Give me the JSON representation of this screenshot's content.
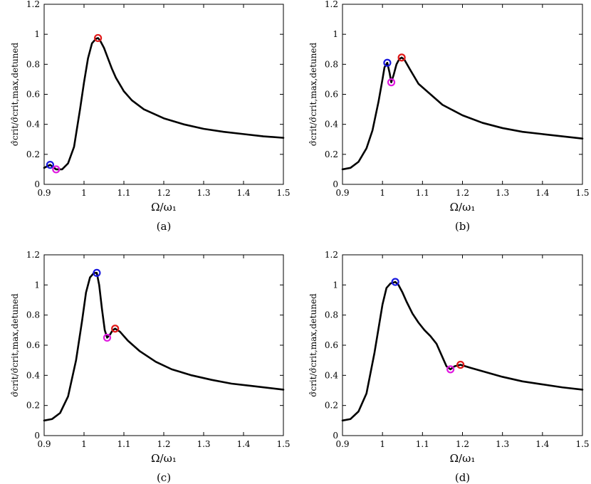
{
  "colors": {
    "curve": "#000000",
    "blue": "#1a1adf",
    "red": "#e01a1a",
    "magenta": "#e01ae0"
  },
  "chart_data": [
    {
      "type": "line",
      "caption": "(a)",
      "xlabel": "Ω/ω₁",
      "ylabel": "σ̂crit/σ̂crit,max,detuned",
      "xlim": [
        0.9,
        1.5
      ],
      "ylim": [
        0,
        1.2
      ],
      "xticks": [
        "0.9",
        "1",
        "1.1",
        "1.2",
        "1.3",
        "1.4",
        "1.5"
      ],
      "yticks": [
        "0",
        "0.2",
        "0.4",
        "0.6",
        "0.8",
        "1",
        "1.2"
      ],
      "grid": false,
      "series": [
        {
          "x": [
            0.9,
            0.915,
            0.93,
            0.945,
            0.96,
            0.975,
            0.99,
            1.0,
            1.01,
            1.02,
            1.03,
            1.035,
            1.04,
            1.05,
            1.06,
            1.07,
            1.08,
            1.1,
            1.12,
            1.15,
            1.2,
            1.25,
            1.3,
            1.35,
            1.4,
            1.45,
            1.5
          ],
          "y": [
            0.11,
            0.13,
            0.1,
            0.1,
            0.14,
            0.25,
            0.5,
            0.68,
            0.84,
            0.94,
            0.97,
            0.975,
            0.96,
            0.91,
            0.84,
            0.77,
            0.71,
            0.62,
            0.56,
            0.5,
            0.44,
            0.4,
            0.37,
            0.35,
            0.335,
            0.32,
            0.31
          ]
        }
      ],
      "markers": [
        {
          "color": "blue",
          "x": 0.915,
          "y": 0.13
        },
        {
          "color": "magenta",
          "x": 0.93,
          "y": 0.1
        },
        {
          "color": "red",
          "x": 1.035,
          "y": 0.975
        }
      ]
    },
    {
      "type": "line",
      "caption": "(b)",
      "xlabel": "Ω/ω₁",
      "ylabel": "σ̂crit/σ̂crit,max,detuned",
      "xlim": [
        0.9,
        1.5
      ],
      "ylim": [
        0,
        1.2
      ],
      "xticks": [
        "0.9",
        "1",
        "1.1",
        "1.2",
        "1.3",
        "1.4",
        "1.5"
      ],
      "yticks": [
        "0",
        "0.2",
        "0.4",
        "0.6",
        "0.8",
        "1",
        "1.2"
      ],
      "grid": false,
      "series": [
        {
          "x": [
            0.9,
            0.92,
            0.94,
            0.96,
            0.975,
            0.99,
            1.0,
            1.005,
            1.012,
            1.018,
            1.022,
            1.028,
            1.035,
            1.042,
            1.048,
            1.055,
            1.07,
            1.09,
            1.12,
            1.15,
            1.2,
            1.25,
            1.3,
            1.35,
            1.4,
            1.45,
            1.5
          ],
          "y": [
            0.1,
            0.11,
            0.15,
            0.24,
            0.36,
            0.55,
            0.7,
            0.78,
            0.81,
            0.74,
            0.68,
            0.73,
            0.8,
            0.835,
            0.845,
            0.83,
            0.76,
            0.67,
            0.6,
            0.53,
            0.46,
            0.41,
            0.375,
            0.35,
            0.335,
            0.32,
            0.305
          ]
        }
      ],
      "markers": [
        {
          "color": "blue",
          "x": 1.012,
          "y": 0.81
        },
        {
          "color": "magenta",
          "x": 1.022,
          "y": 0.68
        },
        {
          "color": "red",
          "x": 1.048,
          "y": 0.845
        }
      ]
    },
    {
      "type": "line",
      "caption": "(c)",
      "xlabel": "Ω/ω₁",
      "ylabel": "σ̂crit/σ̂crit,max,detuned",
      "xlim": [
        0.9,
        1.5
      ],
      "ylim": [
        0,
        1.2
      ],
      "xticks": [
        "0.9",
        "1",
        "1.1",
        "1.2",
        "1.3",
        "1.4",
        "1.5"
      ],
      "yticks": [
        "0",
        "0.2",
        "0.4",
        "0.6",
        "0.8",
        "1",
        "1.2"
      ],
      "grid": false,
      "series": [
        {
          "x": [
            0.9,
            0.92,
            0.94,
            0.96,
            0.98,
            0.995,
            1.005,
            1.015,
            1.025,
            1.032,
            1.038,
            1.045,
            1.052,
            1.058,
            1.065,
            1.072,
            1.078,
            1.09,
            1.11,
            1.14,
            1.18,
            1.22,
            1.27,
            1.32,
            1.37,
            1.42,
            1.5
          ],
          "y": [
            0.1,
            0.11,
            0.15,
            0.26,
            0.5,
            0.76,
            0.95,
            1.05,
            1.08,
            1.08,
            1.0,
            0.84,
            0.7,
            0.65,
            0.67,
            0.7,
            0.71,
            0.69,
            0.63,
            0.56,
            0.49,
            0.44,
            0.4,
            0.37,
            0.345,
            0.33,
            0.305
          ]
        }
      ],
      "markers": [
        {
          "color": "blue",
          "x": 1.032,
          "y": 1.08
        },
        {
          "color": "magenta",
          "x": 1.058,
          "y": 0.65
        },
        {
          "color": "red",
          "x": 1.078,
          "y": 0.71
        }
      ]
    },
    {
      "type": "line",
      "caption": "(d)",
      "xlabel": "Ω/ω₁",
      "ylabel": "σ̂crit/σ̂crit,max,detuned",
      "xlim": [
        0.9,
        1.5
      ],
      "ylim": [
        0,
        1.2
      ],
      "xticks": [
        "0.9",
        "1",
        "1.1",
        "1.2",
        "1.3",
        "1.4",
        "1.5"
      ],
      "yticks": [
        "0",
        "0.2",
        "0.4",
        "0.6",
        "0.8",
        "1",
        "1.2"
      ],
      "grid": false,
      "series": [
        {
          "x": [
            0.9,
            0.92,
            0.94,
            0.96,
            0.98,
            1.0,
            1.01,
            1.02,
            1.032,
            1.04,
            1.05,
            1.06,
            1.075,
            1.09,
            1.105,
            1.12,
            1.135,
            1.15,
            1.16,
            1.17,
            1.18,
            1.195,
            1.22,
            1.26,
            1.3,
            1.35,
            1.4,
            1.45,
            1.5
          ],
          "y": [
            0.1,
            0.11,
            0.16,
            0.28,
            0.55,
            0.87,
            0.98,
            1.01,
            1.02,
            1.0,
            0.95,
            0.89,
            0.81,
            0.75,
            0.7,
            0.66,
            0.61,
            0.52,
            0.46,
            0.44,
            0.46,
            0.47,
            0.45,
            0.42,
            0.39,
            0.36,
            0.34,
            0.32,
            0.305
          ]
        }
      ],
      "markers": [
        {
          "color": "blue",
          "x": 1.032,
          "y": 1.02
        },
        {
          "color": "magenta",
          "x": 1.17,
          "y": 0.44
        },
        {
          "color": "red",
          "x": 1.195,
          "y": 0.47
        }
      ]
    }
  ]
}
